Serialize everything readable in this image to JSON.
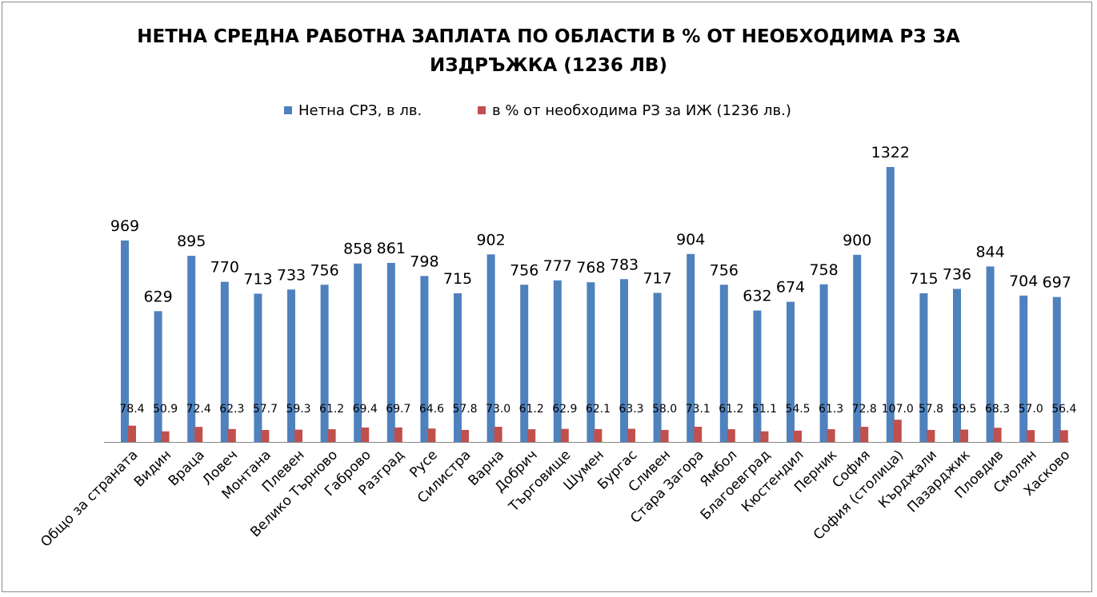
{
  "chart_data": {
    "type": "bar",
    "title_line1": "НЕТНА СРЕДНА РАБОТНА ЗАПЛАТА ПО ОБЛАСТИ В % ОТ НЕОБХОДИМА РЗ ЗА",
    "title_line2": "ИЗДРЪЖКА (1236 ЛВ)",
    "legend_position": "top",
    "grid": false,
    "ylim": [
      0,
      1400
    ],
    "categories": [
      "Общо за страната",
      "Видин",
      "Враца",
      "Ловеч",
      "Монтана",
      "Плевен",
      "Велико Търново",
      "Габрово",
      "Разград",
      "Русе",
      "Силистра",
      "Варна",
      "Добрич",
      "Търговище",
      "Шумен",
      "Бургас",
      "Сливен",
      "Стара Загора",
      "Ямбол",
      "Благоевград",
      "Кюстендил",
      "Перник",
      "София",
      "София (столица)",
      "Кърджали",
      "Пазарджик",
      "Пловдив",
      "Смолян",
      "Хасково"
    ],
    "series": [
      {
        "name": "Нетна СРЗ, в лв.",
        "color": "#4f81bd",
        "values": [
          969,
          629,
          895,
          770,
          713,
          733,
          756,
          858,
          861,
          798,
          715,
          902,
          756,
          777,
          768,
          783,
          717,
          904,
          756,
          632,
          674,
          758,
          900,
          1322,
          715,
          736,
          844,
          704,
          697
        ],
        "labels": [
          "969",
          "629",
          "895",
          "770",
          "713",
          "733",
          "756",
          "858",
          "861",
          "798",
          "715",
          "902",
          "756",
          "777",
          "768",
          "783",
          "717",
          "904",
          "756",
          "632",
          "674",
          "758",
          "900",
          "1322",
          "715",
          "736",
          "844",
          "704",
          "697"
        ]
      },
      {
        "name": "в % от необходима РЗ за ИЖ (1236 лв.)",
        "color": "#c0504d",
        "values": [
          78.4,
          50.9,
          72.4,
          62.3,
          57.7,
          59.3,
          61.2,
          69.4,
          69.7,
          64.6,
          57.8,
          73.0,
          61.2,
          62.9,
          62.1,
          63.3,
          58.0,
          73.1,
          61.2,
          51.1,
          54.5,
          61.3,
          72.8,
          107.0,
          57.8,
          59.5,
          68.3,
          57.0,
          56.4
        ],
        "labels": [
          "78.4",
          "50.9",
          "72.4",
          "62.3",
          "57.7",
          "59.3",
          "61.2",
          "69.4",
          "69.7",
          "64.6",
          "57.8",
          "73.0",
          "61.2",
          "62.9",
          "62.1",
          "63.3",
          "58.0",
          "73.1",
          "61.2",
          "51.1",
          "54.5",
          "61.3",
          "72.8",
          "107.0",
          "57.8",
          "59.5",
          "68.3",
          "57.0",
          "56.4"
        ]
      }
    ]
  }
}
